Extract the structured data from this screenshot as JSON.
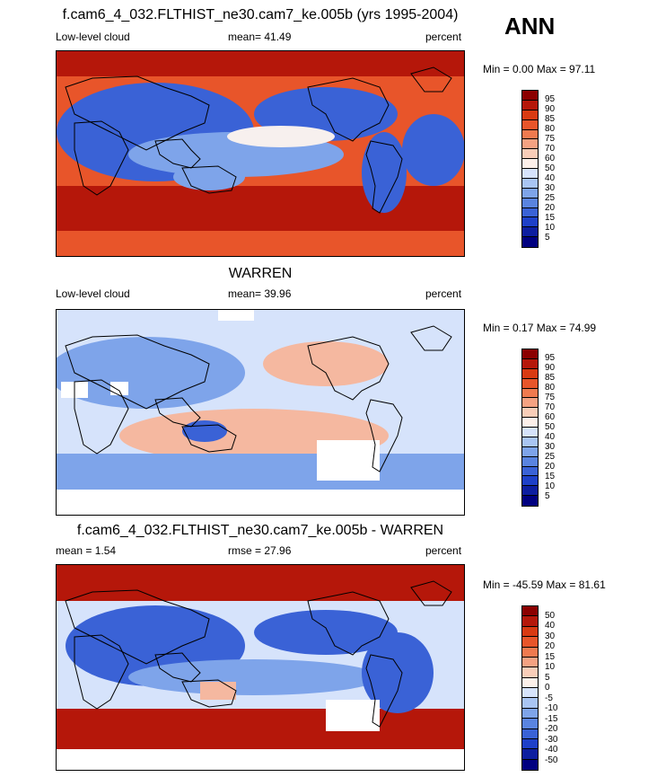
{
  "season": "ANN",
  "panels": [
    {
      "title": "f.cam6_4_032.FLTHIST_ne30.cam7_ke.005b (yrs 1995-2004)",
      "left_label": "Low-level cloud",
      "center_label": "mean=  41.49",
      "right_label": "percent",
      "minmax": "Min =   0.00 Max =  97.11",
      "colorbar_levels": [
        "95",
        "90",
        "85",
        "80",
        "75",
        "70",
        "60",
        "50",
        "40",
        "30",
        "25",
        "20",
        "15",
        "10",
        "5"
      ],
      "field": "model"
    },
    {
      "title": "WARREN",
      "left_label": "Low-level cloud",
      "center_label": "mean=  39.96",
      "right_label": "percent",
      "minmax": "Min =   0.17 Max =  74.99",
      "colorbar_levels": [
        "95",
        "90",
        "85",
        "80",
        "75",
        "70",
        "60",
        "50",
        "40",
        "30",
        "25",
        "20",
        "15",
        "10",
        "5"
      ],
      "field": "obs"
    },
    {
      "title": "f.cam6_4_032.FLTHIST_ne30.cam7_ke.005b - WARREN",
      "left_label": "mean =   1.54",
      "center_label": "rmse =  27.96",
      "right_label": "percent",
      "minmax": "Min = -45.59 Max =  81.61",
      "colorbar_levels": [
        "50",
        "40",
        "30",
        "20",
        "15",
        "10",
        "5",
        "0",
        "-5",
        "-10",
        "-15",
        "-20",
        "-30",
        "-40",
        "-50"
      ],
      "field": "diff"
    }
  ],
  "colorbar_colors": [
    "#8b0000",
    "#b5170a",
    "#d83a12",
    "#e8552a",
    "#f07a4f",
    "#f5a282",
    "#f9cdb8",
    "#fdf0ea",
    "#d6e3fb",
    "#a9c5f3",
    "#7ea4ea",
    "#5a84e0",
    "#3a62d6",
    "#1e40c8",
    "#0d1ea0",
    "#000080"
  ],
  "map_colors": {
    "ocean_high": "#b5170a",
    "ocean_mid": "#e8552a",
    "neutral": "#f7f0ee",
    "low": "#3a62d6",
    "mid_low": "#7ea4ea",
    "light": "#d6e3fb",
    "pinkish": "#f5b8a0",
    "missing": "#ffffff",
    "coast": "#000000"
  }
}
